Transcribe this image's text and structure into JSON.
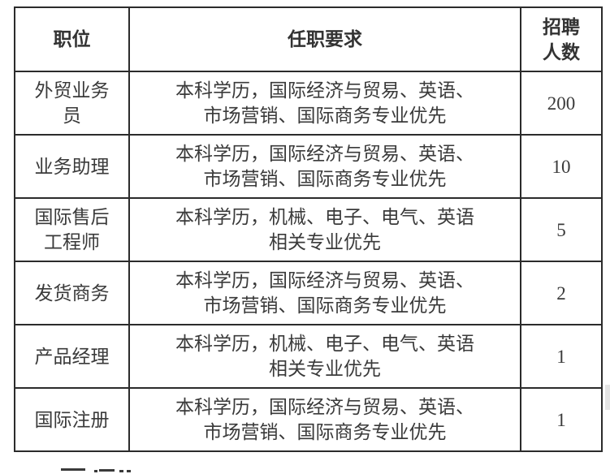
{
  "table": {
    "headers": {
      "position": "职位",
      "requirements": "任职要求",
      "count": "招聘\n人数"
    },
    "rows": [
      {
        "position": "外贸业务\n员",
        "requirements": "本科学历，国际经济与贸易、英语、\n市场营销、国际商务专业优先",
        "count": "200"
      },
      {
        "position": "业务助理",
        "requirements": "本科学历，国际经济与贸易、英语、\n市场营销、国际商务专业优先",
        "count": "10"
      },
      {
        "position": "国际售后\n工程师",
        "requirements": "本科学历，机械、电子、电气、英语\n相关专业优先",
        "count": "5"
      },
      {
        "position": "发货商务",
        "requirements": "本科学历，国际经济与贸易、英语、\n市场营销、国际商务专业优先",
        "count": "2"
      },
      {
        "position": "产品经理",
        "requirements": "本科学历，机械、电子、电气、英语\n相关专业优先",
        "count": "1"
      },
      {
        "position": "国际注册",
        "requirements": "本科学历，国际经济与贸易、英语、\n市场营销、国际商务专业优先",
        "count": "1"
      }
    ]
  },
  "colors": {
    "border": "#2b2b2b",
    "text": "#3a3a3a",
    "background": "#ffffff",
    "scroll_mark": "#e4e4e4"
  }
}
